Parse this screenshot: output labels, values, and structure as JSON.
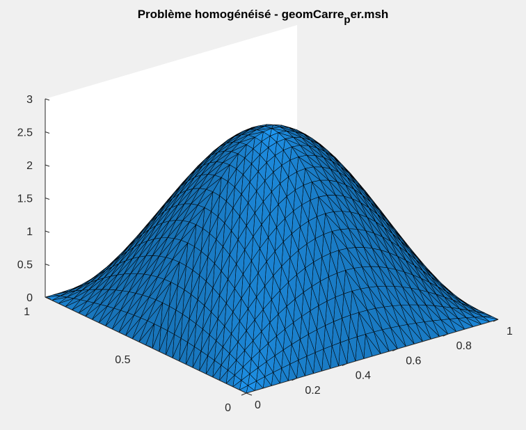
{
  "chart_data": {
    "type": "surface",
    "title": {
      "main": "Problème homogénéisé - geomCarre",
      "subscript": "p",
      "suffix": "er.msh"
    },
    "xlabel": "",
    "ylabel": "",
    "zlabel": "",
    "x_range": [
      0,
      1
    ],
    "y_range": [
      0,
      1
    ],
    "z_range": [
      0,
      3
    ],
    "x_ticks": [
      "0",
      "0.2",
      "0.4",
      "0.6",
      "0.8",
      "1"
    ],
    "y_ticks": [
      "0",
      "0.5",
      "1"
    ],
    "z_ticks": [
      "0",
      "0.5",
      "1",
      "1.5",
      "2",
      "2.5",
      "3"
    ],
    "grid": false,
    "view": "3d-default",
    "surface_color": "#1e90e6",
    "edge_color": "#000000",
    "mesh": "triangulated grid, 30 x 30",
    "peak": {
      "x": 0.5,
      "y": 0.5,
      "z": 2.72
    },
    "surface_samples": {
      "x": [
        0,
        0.25,
        0.5,
        0.75,
        1
      ],
      "y": [
        0,
        0.25,
        0.5,
        0.75,
        1
      ],
      "z": [
        [
          0,
          0,
          0,
          0,
          0
        ],
        [
          0,
          1.36,
          1.92,
          1.36,
          0
        ],
        [
          0,
          1.92,
          2.72,
          1.92,
          0
        ],
        [
          0,
          1.36,
          1.92,
          1.36,
          0
        ],
        [
          0,
          0,
          0,
          0,
          0
        ]
      ]
    }
  }
}
